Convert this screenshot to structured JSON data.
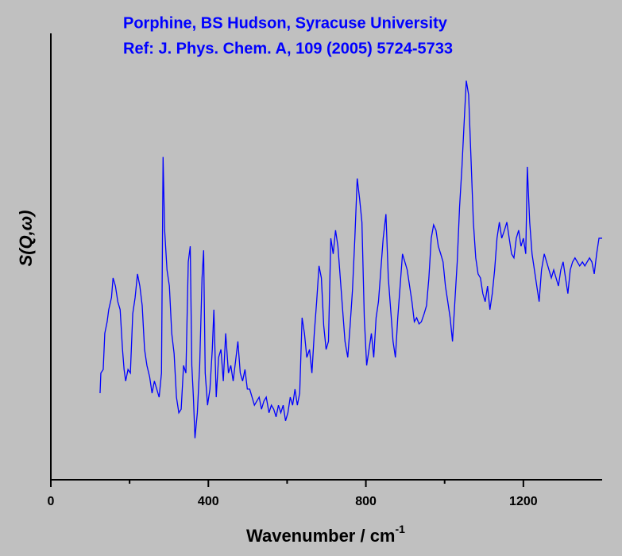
{
  "chart_data": {
    "type": "line",
    "title": [
      "Porphine, BS Hudson, Syracuse University",
      "Ref: J. Phys. Chem. A, 109 (2005) 5724-5733"
    ],
    "xlabel": {
      "text": "Wavenumber / cm",
      "superscript": "-1"
    },
    "ylabel": "S(Q,ω)",
    "xlim": [
      0,
      1400
    ],
    "xticks": [
      0,
      400,
      800,
      1200
    ],
    "xminorticks": [
      200,
      600,
      1000
    ],
    "ylim": [
      0,
      100
    ],
    "yticks": [],
    "grid": false,
    "series": [
      {
        "name": "Porphine",
        "color": "#0000ff",
        "x": [
          125,
          127,
          133,
          137,
          143,
          147,
          154,
          158,
          164,
          170,
          176,
          182,
          186,
          190,
          196,
          202,
          208,
          214,
          220,
          226,
          232,
          238,
          244,
          251,
          257,
          263,
          269,
          275,
          281,
          285,
          289,
          295,
          301,
          307,
          313,
          319,
          325,
          331,
          337,
          343,
          349,
          354,
          358,
          362,
          366,
          372,
          378,
          384,
          388,
          392,
          398,
          404,
          410,
          414,
          420,
          426,
          432,
          438,
          444,
          451,
          457,
          463,
          469,
          475,
          481,
          487,
          493,
          499,
          505,
          511,
          517,
          523,
          529,
          535,
          541,
          547,
          554,
          560,
          566,
          572,
          578,
          584,
          590,
          596,
          602,
          608,
          614,
          620,
          626,
          632,
          638,
          644,
          650,
          657,
          663,
          669,
          675,
          681,
          687,
          693,
          699,
          705,
          711,
          717,
          723,
          729,
          735,
          741,
          747,
          754,
          760,
          766,
          772,
          778,
          784,
          790,
          796,
          802,
          808,
          814,
          820,
          826,
          832,
          838,
          844,
          851,
          857,
          863,
          869,
          875,
          881,
          887,
          893,
          899,
          905,
          911,
          917,
          923,
          929,
          935,
          941,
          948,
          954,
          960,
          966,
          972,
          978,
          984,
          990,
          996,
          1002,
          1008,
          1014,
          1020,
          1026,
          1032,
          1038,
          1044,
          1051,
          1055,
          1061,
          1067,
          1073,
          1079,
          1085,
          1091,
          1097,
          1103,
          1109,
          1115,
          1121,
          1127,
          1133,
          1139,
          1145,
          1152,
          1158,
          1164,
          1170,
          1176,
          1182,
          1188,
          1194,
          1200,
          1206,
          1210,
          1216,
          1222,
          1228,
          1234,
          1240,
          1246,
          1253,
          1259,
          1265,
          1271,
          1277,
          1283,
          1289,
          1295,
          1301,
          1307,
          1313,
          1319,
          1325,
          1331,
          1337,
          1343,
          1350,
          1356,
          1362,
          1368,
          1374,
          1380,
          1386,
          1392,
          1400
        ],
        "values": [
          19.4,
          23.9,
          24.7,
          32.8,
          35.4,
          38.1,
          40.8,
          45.2,
          43.4,
          39.9,
          38.1,
          29.2,
          24.7,
          22.1,
          24.7,
          23.9,
          37.2,
          40.8,
          46.1,
          43.4,
          39.0,
          29.2,
          25.6,
          23.0,
          19.4,
          22.1,
          20.3,
          18.5,
          23.9,
          72.3,
          55.9,
          47.0,
          43.4,
          32.8,
          28.3,
          18.5,
          15.0,
          15.8,
          25.6,
          23.9,
          48.8,
          52.3,
          25.6,
          18.5,
          9.3,
          15.0,
          25.6,
          45.2,
          51.4,
          23.9,
          16.7,
          20.3,
          29.2,
          38.1,
          18.5,
          27.4,
          29.2,
          22.1,
          32.8,
          23.9,
          25.6,
          22.1,
          26.5,
          31.0,
          23.9,
          22.1,
          24.7,
          20.3,
          20.3,
          18.5,
          16.7,
          17.6,
          18.5,
          15.8,
          17.6,
          18.5,
          15.0,
          16.7,
          15.8,
          14.1,
          16.7,
          15.0,
          16.7,
          13.2,
          15.0,
          18.5,
          16.7,
          20.3,
          16.7,
          19.4,
          36.3,
          32.8,
          27.4,
          29.2,
          23.9,
          32.8,
          39.9,
          47.9,
          45.2,
          34.5,
          29.2,
          31.0,
          54.1,
          50.6,
          55.9,
          52.3,
          45.2,
          38.1,
          31.0,
          27.4,
          34.5,
          42.5,
          54.1,
          67.5,
          63.0,
          57.7,
          36.3,
          25.6,
          29.2,
          32.8,
          27.4,
          36.3,
          39.9,
          47.0,
          54.1,
          59.5,
          45.2,
          38.1,
          31.0,
          27.4,
          36.3,
          43.4,
          50.6,
          48.8,
          47.0,
          43.4,
          39.9,
          35.4,
          36.3,
          34.9,
          35.4,
          37.2,
          39.0,
          45.2,
          54.1,
          57.1,
          55.9,
          52.3,
          50.6,
          48.8,
          43.4,
          39.9,
          36.3,
          31.0,
          39.9,
          48.8,
          61.2,
          70.1,
          82.6,
          89.4,
          86.2,
          71.9,
          57.7,
          49.7,
          46.1,
          45.2,
          41.7,
          39.9,
          43.4,
          38.1,
          41.7,
          47.0,
          54.1,
          57.7,
          54.1,
          55.9,
          57.7,
          54.1,
          50.6,
          49.7,
          54.1,
          55.9,
          52.3,
          54.1,
          50.6,
          70.1,
          57.7,
          50.6,
          47.0,
          43.4,
          39.9,
          47.0,
          50.6,
          48.8,
          47.0,
          45.2,
          47.0,
          45.2,
          43.4,
          47.0,
          48.8,
          45.2,
          41.7,
          47.0,
          48.8,
          49.7,
          48.8,
          47.9,
          48.8,
          47.9,
          48.8,
          49.7,
          48.8,
          46.1,
          50.6,
          54.1,
          54.1
        ]
      }
    ]
  }
}
